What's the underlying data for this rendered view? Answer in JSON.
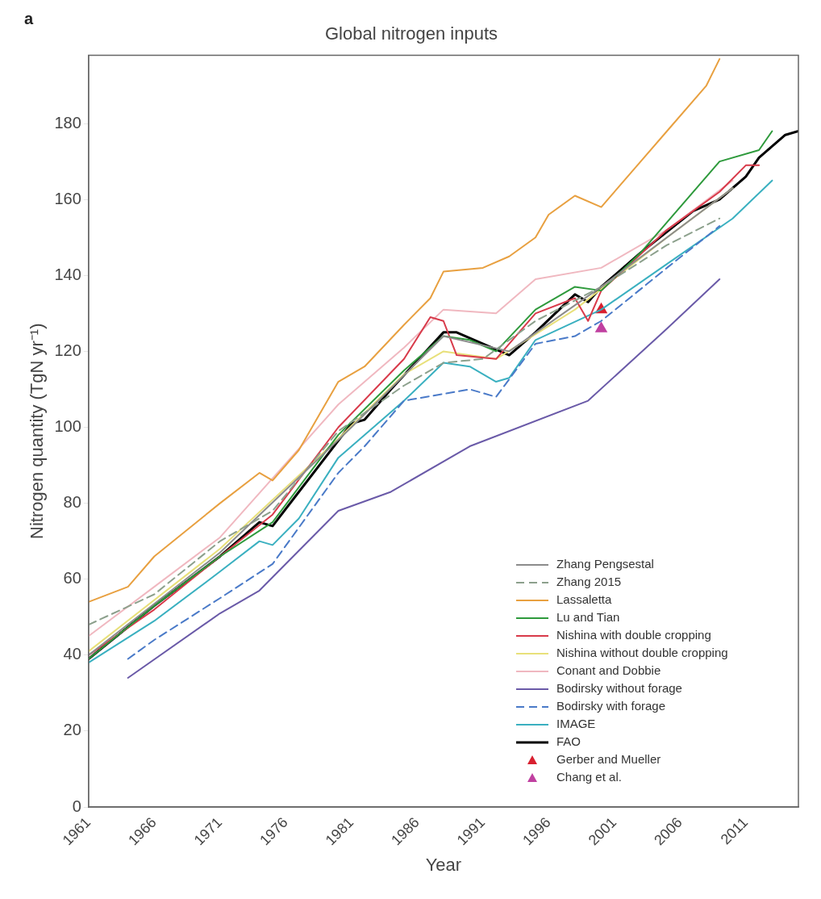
{
  "chart_data": {
    "type": "line",
    "title": "Global nitrogen inputs",
    "xlabel": "Year",
    "ylabel": "Nitrogen quantity (TgN yr⁻¹)",
    "annotations": [
      "a"
    ],
    "xlim": [
      1961,
      2015
    ],
    "xticks": [
      1961,
      1966,
      1971,
      1976,
      1981,
      1986,
      1991,
      1996,
      2001,
      2006,
      2011
    ],
    "ylim": [
      0,
      198
    ],
    "yticks": [
      0,
      20,
      40,
      60,
      80,
      100,
      120,
      140,
      160,
      180
    ],
    "grid": false,
    "legend": "bottom right",
    "series": [
      {
        "name": "Zhang Pengsestal",
        "color": "#8c8c8c",
        "x": [
          1961,
          1971,
          1981,
          1988,
          1993,
          2000,
          2010
        ],
        "values": [
          40,
          67,
          100,
          124,
          120,
          137,
          163
        ]
      },
      {
        "name": "Zhang 2015",
        "color": "#8ca08c",
        "line_style": "dashed",
        "x": [
          1961,
          1966,
          1971,
          1975,
          1980,
          1985,
          1988,
          1991,
          1995,
          2000,
          2005,
          2009
        ],
        "values": [
          48,
          56,
          70,
          78,
          99,
          111,
          117,
          118,
          128,
          137,
          148,
          155
        ]
      },
      {
        "name": "Lassaletta",
        "color": "#e8a040",
        "x": [
          1961,
          1964,
          1966,
          1971,
          1974,
          1975,
          1977,
          1980,
          1982,
          1985,
          1987,
          1988,
          1991,
          1993,
          1995,
          1996,
          1998,
          2000,
          2003,
          2005,
          2008,
          2009
        ],
        "values": [
          54,
          58,
          66,
          80,
          88,
          86,
          94,
          112,
          116,
          127,
          134,
          141,
          142,
          145,
          150,
          156,
          161,
          158,
          170,
          178,
          190,
          197
        ]
      },
      {
        "name": "Lu and Tian",
        "color": "#2e9a3c",
        "x": [
          1961,
          1966,
          1971,
          1975,
          1980,
          1985,
          1988,
          1990,
          1992,
          1995,
          1998,
          2000,
          2003,
          2006,
          2009,
          2012,
          2013
        ],
        "values": [
          39,
          53,
          66,
          75,
          98,
          115,
          124,
          123,
          120,
          131,
          137,
          136,
          146,
          158,
          170,
          173,
          178
        ]
      },
      {
        "name": "Nishina with double cropping",
        "color": "#d83a4a",
        "x": [
          1961,
          1966,
          1971,
          1975,
          1980,
          1985,
          1987,
          1988,
          1989,
          1992,
          1995,
          1998,
          1999,
          2000,
          2005,
          2009,
          2011,
          2012
        ],
        "values": [
          40,
          52,
          66,
          77,
          100,
          118,
          129,
          128,
          119,
          118,
          130,
          134,
          128,
          136,
          152,
          162,
          169,
          169
        ]
      },
      {
        "name": "Nishina without double cropping",
        "color": "#e8e07a",
        "x": [
          1961,
          1971,
          1980,
          1985,
          1988,
          1992,
          1998,
          2005,
          2010
        ],
        "values": [
          41,
          68,
          97,
          114,
          120,
          118,
          131,
          150,
          163
        ]
      },
      {
        "name": "Conant and Dobbie",
        "color": "#f0b8c0",
        "x": [
          1961,
          1966,
          1971,
          1980,
          1985,
          1988,
          1992,
          1995,
          2000,
          2005,
          2010
        ],
        "values": [
          45,
          58,
          71,
          106,
          121,
          131,
          130,
          139,
          142,
          152,
          165
        ]
      },
      {
        "name": "Bodirsky without forage",
        "color": "#6a5aa8",
        "x": [
          1964,
          1971,
          1974,
          1980,
          1984,
          1990,
          1999,
          2005,
          2009
        ],
        "values": [
          34,
          51,
          57,
          78,
          83,
          95,
          107,
          126,
          139
        ]
      },
      {
        "name": "Bodirsky with forage",
        "color": "#4a7ac8",
        "line_style": "dashed",
        "x": [
          1964,
          1966,
          1971,
          1975,
          1980,
          1982,
          1985,
          1990,
          1992,
          1995,
          1998,
          2000,
          2005,
          2009
        ],
        "values": [
          39,
          44,
          55,
          64,
          88,
          95,
          107,
          110,
          108,
          122,
          124,
          128,
          142,
          153
        ]
      },
      {
        "name": "IMAGE",
        "color": "#3ab0c0",
        "x": [
          1961,
          1966,
          1971,
          1974,
          1975,
          1977,
          1980,
          1985,
          1988,
          1990,
          1992,
          1993,
          1995,
          2000,
          2005,
          2010,
          2013
        ],
        "values": [
          38,
          49,
          62,
          70,
          69,
          76,
          92,
          107,
          117,
          116,
          112,
          113,
          123,
          131,
          143,
          155,
          165
        ]
      },
      {
        "name": "FAO",
        "color": "#000000",
        "x": [
          1961,
          1966,
          1971,
          1974,
          1975,
          1977,
          1981,
          1982,
          1984,
          1988,
          1989,
          1993,
          1995,
          1998,
          1999,
          2000,
          2003,
          2007,
          2009,
          2011,
          2012,
          2014,
          2015
        ],
        "values": [
          39,
          53,
          66,
          75,
          74,
          83,
          101,
          102,
          110,
          125,
          125,
          119,
          125,
          135,
          133,
          137,
          146,
          157,
          160,
          166,
          171,
          177,
          178
        ]
      },
      {
        "name": "Gerber and Mueller",
        "type": "scatter",
        "marker": "triangle",
        "color": "#d82030",
        "x": [
          2000
        ],
        "values": [
          131
        ]
      },
      {
        "name": "Chang et al.",
        "type": "scatter",
        "marker": "triangle",
        "color": "#c040a0",
        "x": [
          2000
        ],
        "values": [
          126
        ]
      }
    ]
  }
}
